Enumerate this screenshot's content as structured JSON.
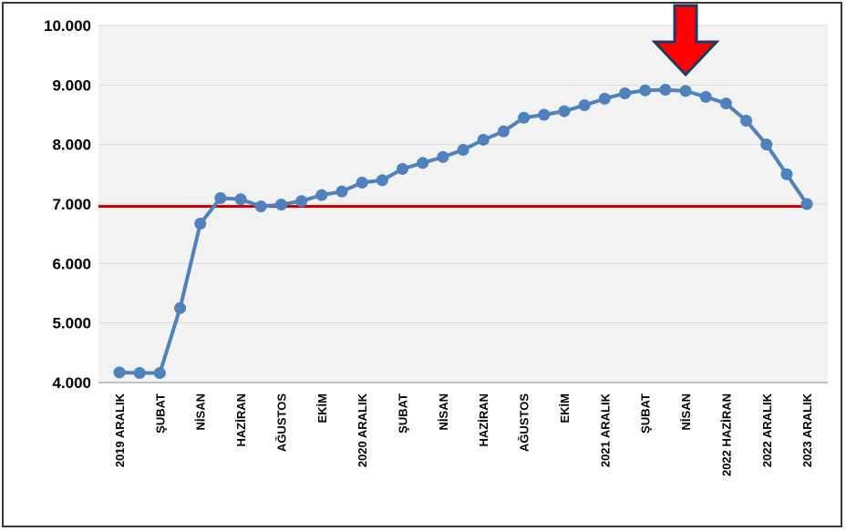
{
  "chart_data": {
    "type": "line",
    "title": "",
    "xlabel": "",
    "ylabel": "",
    "ylim": [
      4000,
      10000
    ],
    "yticks": [
      {
        "value": 4000,
        "label": "4.000"
      },
      {
        "value": 5000,
        "label": "5.000"
      },
      {
        "value": 6000,
        "label": "6.000"
      },
      {
        "value": 7000,
        "label": "7.000"
      },
      {
        "value": 8000,
        "label": "8.000"
      },
      {
        "value": 9000,
        "label": "9.000"
      },
      {
        "value": 10000,
        "label": "10.000"
      }
    ],
    "grid": true,
    "legend": "none",
    "x_labels": [
      {
        "index": 0,
        "label": "2019 ARALIK"
      },
      {
        "index": 2,
        "label": "ŞUBAT"
      },
      {
        "index": 4,
        "label": "NİSAN"
      },
      {
        "index": 6,
        "label": "HAZİRAN"
      },
      {
        "index": 8,
        "label": "AĞUSTOS"
      },
      {
        "index": 10,
        "label": "EKİM"
      },
      {
        "index": 12,
        "label": "2020 ARALIK"
      },
      {
        "index": 14,
        "label": "ŞUBAT"
      },
      {
        "index": 16,
        "label": "NİSAN"
      },
      {
        "index": 18,
        "label": "HAZİRAN"
      },
      {
        "index": 20,
        "label": "AĞUSTOS"
      },
      {
        "index": 22,
        "label": "EKİM"
      },
      {
        "index": 24,
        "label": "2021 ARALIK"
      },
      {
        "index": 26,
        "label": "ŞUBAT"
      },
      {
        "index": 28,
        "label": "NİSAN"
      },
      {
        "index": 30,
        "label": "2022 HAZİRAN"
      },
      {
        "index": 32,
        "label": "2022 ARALIK"
      },
      {
        "index": 34,
        "label": "2023 ARALIK"
      }
    ],
    "series": [
      {
        "values": [
          4170,
          4160,
          4160,
          5250,
          6670,
          7100,
          7080,
          6960,
          6990,
          7050,
          7150,
          7210,
          7360,
          7400,
          7590,
          7690,
          7790,
          7910,
          8080,
          8220,
          8450,
          8500,
          8560,
          8660,
          8770,
          8860,
          8910,
          8920,
          8900,
          8800,
          8690,
          8400,
          8000,
          7500,
          7000
        ],
        "color": "#4F81BD"
      }
    ],
    "reference_line": {
      "value": 6960,
      "color": "#C00000"
    },
    "arrow_marker": {
      "index": 28,
      "color": "#FF0000",
      "outline": "#1F3864"
    },
    "colors": {
      "grid": "#D9D9D9",
      "plot_bg": "#F2F2F2",
      "axis": "#808080"
    }
  }
}
